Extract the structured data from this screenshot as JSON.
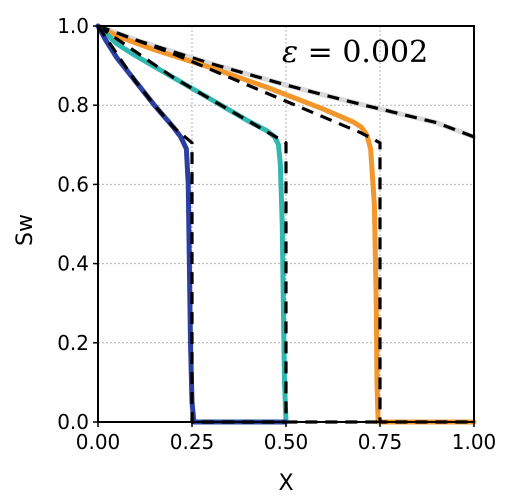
{
  "chart_data": {
    "type": "line",
    "xlabel": "X",
    "ylabel": "Sw",
    "xlim": [
      0,
      1
    ],
    "ylim": [
      0,
      1
    ],
    "grid": true,
    "xticks": [
      "0.00",
      "0.25",
      "0.50",
      "0.75",
      "1.00"
    ],
    "yticks": [
      "0.0",
      "0.2",
      "0.4",
      "0.6",
      "0.8",
      "1.0"
    ],
    "annotation": {
      "symbol": "ε",
      "rest": " = 0.002"
    },
    "series": [
      {
        "color": "#d9d9d9",
        "style": "solid",
        "x": [
          0,
          0.1,
          0.2,
          0.3,
          0.4,
          0.5,
          0.6,
          0.7,
          0.8,
          0.9,
          1.0
        ],
        "y": [
          1.0,
          0.965,
          0.935,
          0.905,
          0.878,
          0.851,
          0.826,
          0.802,
          0.779,
          0.756,
          0.72
        ]
      },
      {
        "color": "#000000",
        "style": "dashed",
        "x": [
          0,
          0.1,
          0.2,
          0.3,
          0.4,
          0.5,
          0.6,
          0.7,
          0.8,
          0.9,
          1.0
        ],
        "y": [
          1.0,
          0.965,
          0.935,
          0.905,
          0.878,
          0.851,
          0.826,
          0.802,
          0.779,
          0.756,
          0.72
        ]
      },
      {
        "color": "#f3962c",
        "style": "solid",
        "x": [
          0,
          0.05,
          0.15,
          0.3,
          0.45,
          0.6,
          0.68,
          0.7,
          0.715,
          0.725,
          0.735,
          0.74,
          0.742,
          0.745,
          0.748,
          1.0
        ],
        "y": [
          1.0,
          0.975,
          0.94,
          0.895,
          0.845,
          0.79,
          0.757,
          0.745,
          0.725,
          0.69,
          0.55,
          0.3,
          0.1,
          0.0,
          0.0,
          0.0
        ]
      },
      {
        "color": "#000000",
        "style": "dashed",
        "x": [
          0,
          0.1,
          0.2,
          0.3,
          0.4,
          0.5,
          0.6,
          0.7,
          0.75,
          0.75,
          1.0
        ],
        "y": [
          1.0,
          0.965,
          0.93,
          0.89,
          0.85,
          0.81,
          0.77,
          0.73,
          0.705,
          0.0,
          0.0
        ]
      },
      {
        "color": "#2fb7b0",
        "style": "solid",
        "x": [
          0,
          0.05,
          0.1,
          0.2,
          0.3,
          0.4,
          0.45,
          0.47,
          0.48,
          0.485,
          0.49,
          0.493,
          0.496,
          0.5
        ],
        "y": [
          1.0,
          0.955,
          0.925,
          0.87,
          0.815,
          0.76,
          0.735,
          0.72,
          0.7,
          0.65,
          0.5,
          0.3,
          0.1,
          0.0
        ]
      },
      {
        "color": "#000000",
        "style": "dashed",
        "x": [
          0,
          0.1,
          0.2,
          0.3,
          0.4,
          0.5,
          0.5,
          0.75
        ],
        "y": [
          1.0,
          0.935,
          0.87,
          0.815,
          0.76,
          0.705,
          0.0,
          0.0
        ]
      },
      {
        "color": "#2b3fa0",
        "style": "solid",
        "x": [
          0,
          0.02,
          0.05,
          0.1,
          0.15,
          0.2,
          0.22,
          0.235,
          0.24,
          0.243,
          0.246,
          0.25,
          0.255,
          0.5
        ],
        "y": [
          1.0,
          0.965,
          0.92,
          0.86,
          0.8,
          0.745,
          0.72,
          0.69,
          0.6,
          0.4,
          0.2,
          0.05,
          0.0,
          0.0
        ]
      },
      {
        "color": "#000000",
        "style": "dashed",
        "x": [
          0,
          0.05,
          0.1,
          0.15,
          0.2,
          0.25,
          0.25,
          0.5
        ],
        "y": [
          1.0,
          0.93,
          0.86,
          0.8,
          0.745,
          0.705,
          0.0,
          0.0
        ]
      }
    ]
  }
}
